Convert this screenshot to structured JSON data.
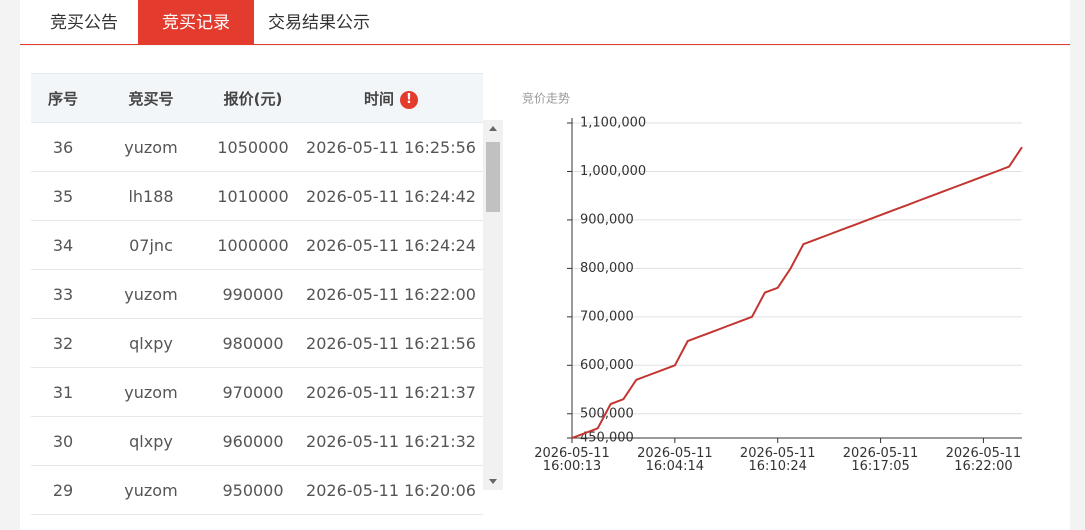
{
  "tabs": [
    "竞买公告",
    "竞买记录",
    "交易结果公示"
  ],
  "table": {
    "headers": [
      "序号",
      "竞买号",
      "报价(元)",
      "时间"
    ],
    "rows": [
      [
        36,
        "yuzom",
        1050000,
        "2026-05-11 16:25:56"
      ],
      [
        35,
        "lh188",
        1010000,
        "2026-05-11 16:24:42"
      ],
      [
        34,
        "07jnc",
        1000000,
        "2026-05-11 16:24:24"
      ],
      [
        33,
        "yuzom",
        990000,
        "2026-05-11 16:22:00"
      ],
      [
        32,
        "qlxpy",
        980000,
        "2026-05-11 16:21:56"
      ],
      [
        31,
        "yuzom",
        970000,
        "2026-05-11 16:21:37"
      ],
      [
        30,
        "qlxpy",
        960000,
        "2026-05-11 16:21:32"
      ],
      [
        29,
        "yuzom",
        950000,
        "2026-05-11 16:20:06"
      ]
    ]
  },
  "chart_data": {
    "type": "line",
    "title": "竞价走势",
    "categories": [
      "2026-05-11 16:00:13",
      null,
      null,
      null,
      null,
      null,
      null,
      null,
      "2026-05-11 16:04:14",
      null,
      null,
      null,
      null,
      null,
      null,
      null,
      "2026-05-11 16:10:24",
      null,
      null,
      null,
      null,
      null,
      null,
      null,
      "2026-05-11 16:17:05",
      null,
      null,
      null,
      null,
      null,
      null,
      null,
      "2026-05-11 16:22:00",
      null,
      null,
      null
    ],
    "values": [
      450000,
      460000,
      470000,
      520000,
      530000,
      570000,
      580000,
      590000,
      600000,
      650000,
      660000,
      670000,
      680000,
      690000,
      700000,
      750000,
      760000,
      800000,
      850000,
      860000,
      870000,
      880000,
      890000,
      900000,
      910000,
      920000,
      930000,
      940000,
      950000,
      960000,
      970000,
      980000,
      990000,
      1000000,
      1010000,
      1050000
    ],
    "color": "#c23531",
    "ylim": [
      450000,
      1100000
    ],
    "yticks": [
      {
        "value": 450000,
        "label": "450,000"
      },
      {
        "value": 500000,
        "label": "500,000"
      },
      {
        "value": 600000,
        "label": "600,000"
      },
      {
        "value": 700000,
        "label": "700,000"
      },
      {
        "value": 800000,
        "label": "800,000"
      },
      {
        "value": 900000,
        "label": "900,000"
      },
      {
        "value": 1000000,
        "label": "1,000,000"
      },
      {
        "value": 1100000,
        "label": "1,100,000"
      }
    ],
    "grid": true
  }
}
